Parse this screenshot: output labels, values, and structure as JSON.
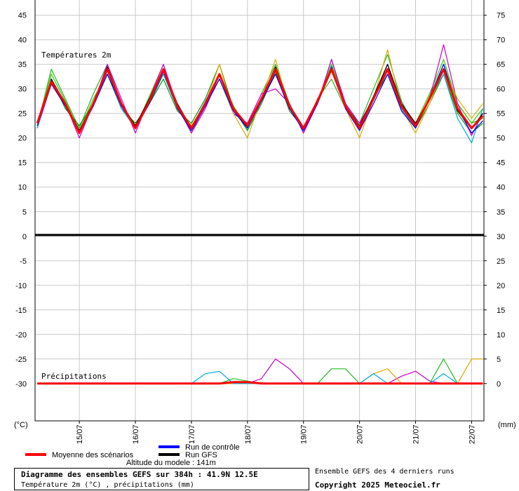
{
  "chart_data": {
    "type": "line",
    "annotations": [
      "Températures 2m",
      "Précipitations"
    ],
    "ylabel": "(°C)",
    "y2label": "(mm)",
    "x": [
      -0.75,
      -0.5,
      -0.25,
      0,
      0.25,
      0.5,
      0.75,
      1,
      1.25,
      1.5,
      1.75,
      2,
      2.25,
      2.5,
      2.75,
      3,
      3.25,
      3.5,
      3.75,
      4,
      4.25,
      4.5,
      4.75,
      5,
      5.25,
      5.5,
      5.75,
      6,
      6.25,
      6.5,
      6.75,
      7,
      7.2
    ],
    "xlim": [
      -0.79,
      7.22
    ],
    "xticks": [
      {
        "value": 0,
        "label": "15/07"
      },
      {
        "value": 1,
        "label": "16/07"
      },
      {
        "value": 2,
        "label": "17/07"
      },
      {
        "value": 3,
        "label": "18/07"
      },
      {
        "value": 4,
        "label": "19/07"
      },
      {
        "value": 5,
        "label": "20/07"
      },
      {
        "value": 6,
        "label": "21/07"
      },
      {
        "value": 7,
        "label": "22/07"
      }
    ],
    "ylim": [
      -37.6,
      48.1
    ],
    "yticks": [
      -30,
      -25,
      -20,
      -15,
      -10,
      -5,
      0,
      5,
      10,
      15,
      20,
      25,
      30,
      35,
      40,
      45
    ],
    "y2lim": [
      -7.6,
      78.1
    ],
    "y2ticks": [
      0,
      5,
      10,
      15,
      20,
      25,
      30,
      35,
      40,
      45,
      50,
      55,
      60,
      65,
      70,
      75
    ],
    "grid": true,
    "series": [
      {
        "name": "Moyenne des scénarios",
        "color": "#ff0000",
        "values": [
          23,
          31.5,
          27,
          21,
          27,
          34,
          27,
          22,
          27.5,
          34,
          26.5,
          22,
          27,
          33,
          26,
          22.5,
          28,
          34,
          26.5,
          22,
          27.5,
          34,
          26.5,
          22,
          28,
          34,
          26.5,
          22.5,
          28,
          34,
          26,
          22,
          24.5
        ]
      },
      {
        "name": "Run de contrôle",
        "color": "#0000ff",
        "values": [
          22.5,
          31,
          26.5,
          21,
          26.5,
          33,
          26.5,
          22,
          27,
          33.5,
          26,
          21.5,
          26.5,
          32,
          25.5,
          22,
          27.5,
          33,
          26,
          21.5,
          27,
          34.5,
          26,
          21.5,
          27,
          33,
          25.5,
          22,
          28,
          35,
          26,
          21,
          23.5
        ]
      },
      {
        "name": "Run GFS",
        "color": "#000000",
        "values": [
          23,
          32,
          27,
          21.5,
          27,
          34.5,
          27,
          22.5,
          28,
          34,
          27,
          22,
          27,
          33,
          26,
          22,
          28,
          34.5,
          26.5,
          22,
          27,
          34,
          26.5,
          22.5,
          28.5,
          35,
          27,
          23,
          28,
          34,
          25.5,
          22,
          25
        ]
      },
      {
        "color": "#22bb22",
        "values": [
          22.5,
          34,
          28,
          22,
          29,
          35,
          27,
          22.5,
          28,
          33,
          26.5,
          21,
          27,
          32,
          25,
          23,
          29,
          35,
          27,
          21.5,
          28,
          32,
          26,
          23,
          30,
          37,
          27.5,
          22,
          28.5,
          35,
          27,
          23,
          24
        ]
      },
      {
        "color": "#33cc00",
        "values": [
          23,
          33,
          27.5,
          21.5,
          28,
          33,
          27,
          22,
          28.5,
          35,
          26,
          22,
          27,
          33,
          26.5,
          22,
          28,
          33,
          27,
          21,
          27.5,
          35,
          27,
          22,
          28,
          34,
          26,
          23,
          29,
          36,
          27,
          23,
          26
        ]
      },
      {
        "color": "#009900",
        "values": [
          22,
          32,
          26,
          22.5,
          27,
          34,
          26,
          23,
          27,
          32,
          25.5,
          23,
          28,
          35,
          26,
          21.5,
          27,
          33.5,
          25.5,
          22,
          27,
          36,
          26.5,
          23,
          28,
          33,
          26,
          22,
          27,
          33,
          25,
          21,
          23
        ]
      },
      {
        "color": "#cc00cc",
        "values": [
          22,
          31,
          27,
          20,
          27,
          35,
          28,
          21,
          28,
          35,
          26.5,
          21,
          26,
          33,
          25,
          23,
          29,
          30,
          27,
          21,
          27,
          36,
          27,
          23,
          28,
          35,
          25.5,
          23,
          28,
          39,
          27,
          20.5,
          25
        ]
      },
      {
        "color": "#ddaa00",
        "values": [
          23,
          32,
          26.5,
          21,
          27,
          33,
          26,
          22,
          28,
          34,
          26,
          22.5,
          27,
          35,
          25,
          20,
          28,
          36,
          26,
          22,
          27,
          34,
          26,
          20,
          28,
          38,
          26,
          21,
          27,
          34,
          28,
          24,
          27
        ]
      },
      {
        "color": "#00aadd",
        "values": [
          22,
          32,
          27,
          21,
          27,
          33,
          26,
          22,
          27,
          33,
          26,
          22,
          27.5,
          33,
          26,
          22,
          28,
          34,
          26.5,
          22,
          27.5,
          34,
          26.5,
          22,
          28,
          34,
          26,
          22,
          28,
          33,
          24,
          19,
          26
        ]
      },
      {
        "axis": "y2",
        "color": "#cc00cc",
        "values": [
          0,
          0,
          0,
          0,
          0,
          0,
          0,
          0,
          0,
          0,
          0,
          0,
          0,
          0,
          0,
          0,
          1,
          5,
          3,
          0,
          0,
          0,
          0,
          0,
          0,
          0,
          1.5,
          2.5,
          0.5,
          0,
          0,
          0,
          0
        ]
      },
      {
        "axis": "y2",
        "color": "#ddaa00",
        "values": [
          0,
          0,
          0,
          0,
          0,
          0,
          0,
          0,
          0,
          0,
          0,
          0,
          0,
          0,
          0,
          0,
          0,
          0,
          0,
          0,
          0,
          0,
          0,
          0,
          2,
          3,
          0,
          0,
          0,
          0,
          0,
          5,
          5
        ]
      },
      {
        "axis": "y2",
        "color": "#22bb22",
        "values": [
          0,
          0,
          0,
          0,
          0,
          0,
          0,
          0,
          0,
          0,
          0,
          0,
          0,
          0,
          1,
          0.5,
          0,
          0,
          0,
          0,
          0,
          3,
          3,
          0,
          0,
          0,
          0,
          0,
          0,
          5,
          0,
          0,
          0
        ]
      },
      {
        "axis": "y2",
        "color": "#00aadd",
        "values": [
          0,
          0,
          0,
          0,
          0,
          0,
          0,
          0,
          0,
          0,
          0,
          0,
          2,
          2.5,
          0,
          0,
          0,
          0,
          0,
          0,
          0,
          0,
          0,
          0,
          2,
          0,
          0,
          0,
          0,
          2,
          0,
          0,
          0
        ]
      },
      {
        "axis": "y2",
        "color": "#ff0000",
        "values": [
          0,
          0,
          0,
          0,
          0,
          0,
          0,
          0,
          0,
          0,
          0,
          0,
          0,
          0,
          0.3,
          0.3,
          0,
          0,
          0,
          0,
          0,
          0,
          0,
          0,
          0,
          0,
          0,
          0,
          0,
          0,
          0,
          0,
          0
        ]
      }
    ],
    "footer": {
      "altitude": "Altitude du modele : 141m",
      "box_title": "Diagramme des ensembles GEFS sur 384h : 41.9N 12.5E",
      "box_subtitle": "Température 2m (°C) , précipitations (mm)",
      "runs_note": "Ensemble GEFS des 4 derniers runs",
      "copyright": "Copyright 2025 Meteociel.fr"
    }
  }
}
